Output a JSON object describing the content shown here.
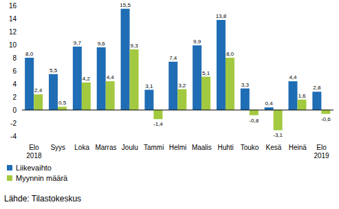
{
  "chart_data": {
    "type": "bar",
    "categories": [
      "Elo 2018",
      "Syys",
      "Loka",
      "Marras",
      "Joulu",
      "Tammi",
      "Helmi",
      "Maalis",
      "Huhti",
      "Touko",
      "Kesä",
      "Heinä",
      "Elo 2019"
    ],
    "series": [
      {
        "name": "Liikevaihto",
        "color": "#1f6db5",
        "values": [
          8.0,
          5.5,
          9.7,
          9.6,
          15.5,
          3.1,
          7.4,
          9.9,
          13.8,
          3.3,
          0.4,
          4.4,
          2.8
        ],
        "value_labels": [
          "8,0",
          "5,5",
          "9,7",
          "9,6",
          "15,5",
          "3,1",
          "7,4",
          "9,9",
          "13,8",
          "3,3",
          "0,4",
          "4,4",
          "2,8"
        ]
      },
      {
        "name": "Myynnin määrä",
        "color": "#a3c940",
        "values": [
          2.4,
          0.5,
          4.2,
          4.4,
          9.3,
          -1.4,
          3.2,
          5.1,
          8.0,
          -0.8,
          -3.1,
          1.6,
          -0.6
        ],
        "value_labels": [
          "2,4",
          "0,5",
          "4,2",
          "4,4",
          "9,3",
          "-1,4",
          "3,2",
          "5,1",
          "8,0",
          "-0,8",
          "-3,1",
          "1,6",
          "-0,6"
        ]
      }
    ],
    "ylim": [
      -4,
      16
    ],
    "yticks": [
      -4,
      -2,
      0,
      2,
      4,
      6,
      8,
      10,
      12,
      14,
      16
    ],
    "grid": false,
    "data_labels": true,
    "legend": "bottom-left",
    "source": "Lähde: Tilastokeskus"
  }
}
